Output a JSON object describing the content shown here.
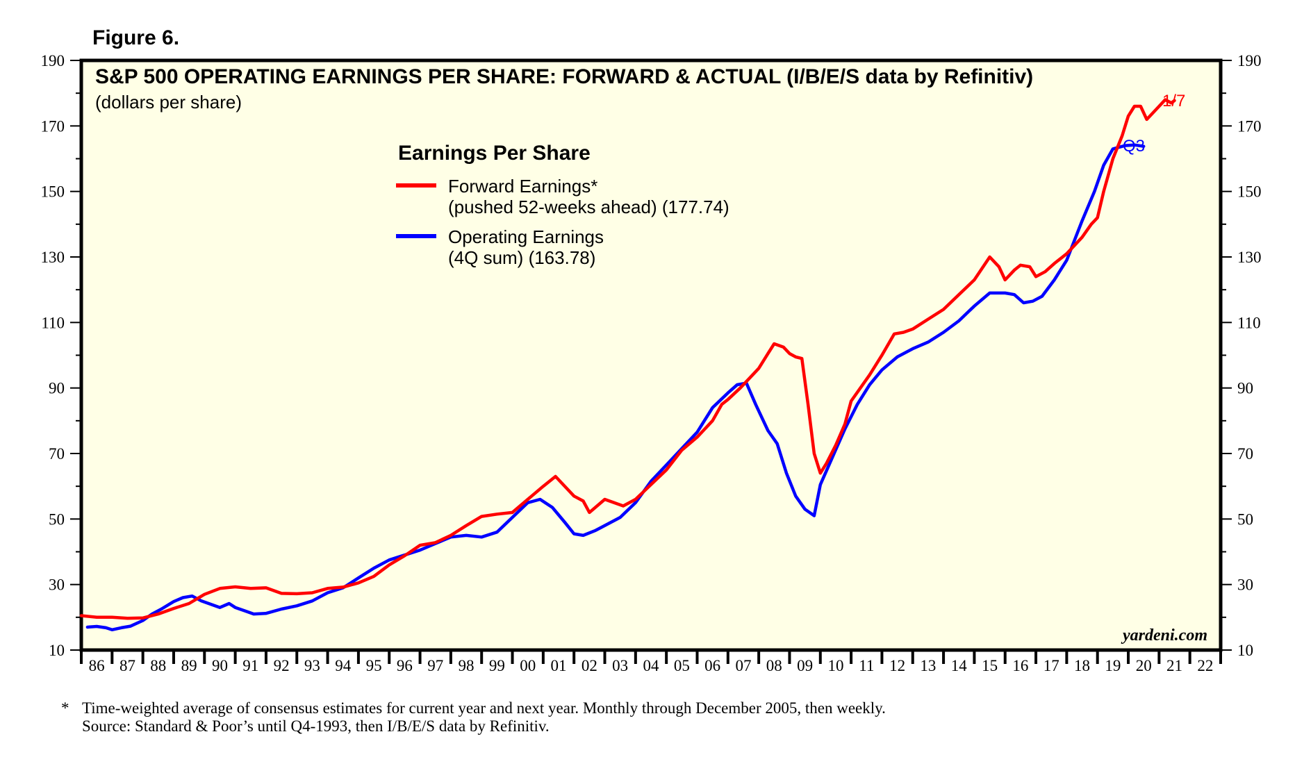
{
  "figure_label": "Figure 6.",
  "footnote": {
    "star": "*",
    "line1": "Time-weighted average of consensus estimates for current year and next year. Monthly through December 2005, then weekly.",
    "line2": "Source: Standard & Poor’s until Q4-1993, then I/B/E/S data by Refinitiv."
  },
  "colors": {
    "background": "#ffffe6",
    "forward": "#ff0000",
    "operating": "#0000ff",
    "axis": "#000000"
  },
  "chart_data": {
    "type": "line",
    "title": "S&P 500 OPERATING EARNINGS PER SHARE: FORWARD & ACTUAL (I/B/E/S data by Refinitiv)",
    "subtitle": "(dollars per share)",
    "ylabel": "dollars per share",
    "ylim": [
      10,
      190
    ],
    "yticks": [
      10,
      30,
      50,
      70,
      90,
      110,
      130,
      150,
      170,
      190
    ],
    "xlim": [
      1986,
      2023
    ],
    "x_tick_labels": [
      "86",
      "87",
      "88",
      "89",
      "90",
      "91",
      "92",
      "93",
      "94",
      "95",
      "96",
      "97",
      "98",
      "99",
      "00",
      "01",
      "02",
      "03",
      "04",
      "05",
      "06",
      "07",
      "08",
      "09",
      "10",
      "11",
      "12",
      "13",
      "14",
      "15",
      "16",
      "17",
      "18",
      "19",
      "20",
      "21",
      "22"
    ],
    "legend_title": "Earnings Per Share",
    "watermark": "yardeni.com",
    "series": [
      {
        "name": "Forward Earnings*",
        "sublabel": "(pushed 52-weeks ahead) (177.74)",
        "end_label": "1/7",
        "points": [
          [
            1986.0,
            20.5
          ],
          [
            1986.5,
            20.0
          ],
          [
            1987.0,
            20.0
          ],
          [
            1987.5,
            19.7
          ],
          [
            1988.0,
            19.8
          ],
          [
            1988.5,
            21.0
          ],
          [
            1989.0,
            22.7
          ],
          [
            1989.5,
            24.2
          ],
          [
            1990.0,
            27.0
          ],
          [
            1990.5,
            28.8
          ],
          [
            1991.0,
            29.3
          ],
          [
            1991.5,
            28.8
          ],
          [
            1992.0,
            29.0
          ],
          [
            1992.5,
            27.3
          ],
          [
            1993.0,
            27.2
          ],
          [
            1993.5,
            27.5
          ],
          [
            1994.0,
            28.8
          ],
          [
            1994.5,
            29.2
          ],
          [
            1995.0,
            30.5
          ],
          [
            1995.5,
            32.5
          ],
          [
            1996.0,
            36.0
          ],
          [
            1996.5,
            38.8
          ],
          [
            1997.0,
            42.0
          ],
          [
            1997.5,
            42.8
          ],
          [
            1998.0,
            45.0
          ],
          [
            1998.5,
            48.0
          ],
          [
            1999.0,
            50.8
          ],
          [
            1999.5,
            51.5
          ],
          [
            2000.0,
            52.0
          ],
          [
            2000.5,
            56.0
          ],
          [
            2001.0,
            60.0
          ],
          [
            2001.4,
            63.0
          ],
          [
            2001.6,
            61.0
          ],
          [
            2002.0,
            57.0
          ],
          [
            2002.3,
            55.5
          ],
          [
            2002.5,
            52.0
          ],
          [
            2003.0,
            56.0
          ],
          [
            2003.3,
            55.0
          ],
          [
            2003.6,
            54.0
          ],
          [
            2004.0,
            56.0
          ],
          [
            2004.5,
            60.5
          ],
          [
            2005.0,
            65.0
          ],
          [
            2005.5,
            71.0
          ],
          [
            2006.0,
            75.0
          ],
          [
            2006.5,
            80.0
          ],
          [
            2006.8,
            85.0
          ],
          [
            2007.0,
            86.5
          ],
          [
            2007.4,
            90.0
          ],
          [
            2007.8,
            94.0
          ],
          [
            2008.0,
            96.0
          ],
          [
            2008.3,
            100.5
          ],
          [
            2008.5,
            103.5
          ],
          [
            2008.8,
            102.5
          ],
          [
            2009.0,
            100.5
          ],
          [
            2009.2,
            99.5
          ],
          [
            2009.4,
            99.0
          ],
          [
            2009.6,
            85.0
          ],
          [
            2009.8,
            70.0
          ],
          [
            2010.0,
            64.0
          ],
          [
            2010.2,
            67.0
          ],
          [
            2010.5,
            72.5
          ],
          [
            2010.8,
            79.0
          ],
          [
            2011.0,
            86.0
          ],
          [
            2011.3,
            90.0
          ],
          [
            2011.6,
            94.0
          ],
          [
            2012.0,
            100.0
          ],
          [
            2012.4,
            106.5
          ],
          [
            2012.7,
            107.0
          ],
          [
            2013.0,
            108.0
          ],
          [
            2013.5,
            111.0
          ],
          [
            2014.0,
            114.0
          ],
          [
            2014.5,
            118.5
          ],
          [
            2015.0,
            123.0
          ],
          [
            2015.5,
            130.0
          ],
          [
            2015.8,
            127.0
          ],
          [
            2016.0,
            123.0
          ],
          [
            2016.3,
            126.0
          ],
          [
            2016.5,
            127.5
          ],
          [
            2016.8,
            127.0
          ],
          [
            2017.0,
            124.0
          ],
          [
            2017.3,
            125.5
          ],
          [
            2017.6,
            128.0
          ],
          [
            2018.0,
            131.0
          ],
          [
            2018.5,
            136.0
          ],
          [
            2018.8,
            140.0
          ],
          [
            2019.0,
            142.0
          ],
          [
            2019.2,
            150.0
          ],
          [
            2019.5,
            160.0
          ],
          [
            2019.8,
            167.0
          ],
          [
            2020.0,
            173.0
          ],
          [
            2020.2,
            176.0
          ],
          [
            2020.4,
            176.0
          ],
          [
            2020.6,
            172.0
          ],
          [
            2020.8,
            174.0
          ],
          [
            2021.0,
            176.0
          ],
          [
            2021.2,
            178.0
          ],
          [
            2021.4,
            177.0
          ],
          [
            2021.5,
            177.74
          ]
        ]
      },
      {
        "name": "Operating Earnings",
        "sublabel": "(4Q sum) (163.78)",
        "end_label": "Q3",
        "points": [
          [
            1986.2,
            17.0
          ],
          [
            1986.5,
            17.2
          ],
          [
            1986.8,
            16.8
          ],
          [
            1987.0,
            16.2
          ],
          [
            1987.3,
            16.8
          ],
          [
            1987.6,
            17.3
          ],
          [
            1988.0,
            19.0
          ],
          [
            1988.3,
            21.0
          ],
          [
            1988.6,
            22.5
          ],
          [
            1989.0,
            24.8
          ],
          [
            1989.3,
            26.0
          ],
          [
            1989.6,
            26.5
          ],
          [
            1989.9,
            25.0
          ],
          [
            1990.2,
            24.0
          ],
          [
            1990.5,
            23.0
          ],
          [
            1990.8,
            24.2
          ],
          [
            1991.0,
            23.0
          ],
          [
            1991.3,
            22.0
          ],
          [
            1991.6,
            21.0
          ],
          [
            1992.0,
            21.2
          ],
          [
            1992.5,
            22.5
          ],
          [
            1993.0,
            23.5
          ],
          [
            1993.5,
            25.0
          ],
          [
            1994.0,
            27.5
          ],
          [
            1994.5,
            29.0
          ],
          [
            1995.0,
            32.0
          ],
          [
            1995.5,
            35.0
          ],
          [
            1996.0,
            37.5
          ],
          [
            1996.5,
            39.0
          ],
          [
            1997.0,
            40.5
          ],
          [
            1997.5,
            42.5
          ],
          [
            1998.0,
            44.5
          ],
          [
            1998.5,
            45.0
          ],
          [
            1999.0,
            44.5
          ],
          [
            1999.5,
            46.0
          ],
          [
            2000.0,
            50.5
          ],
          [
            2000.5,
            55.0
          ],
          [
            2000.9,
            56.0
          ],
          [
            2001.3,
            53.5
          ],
          [
            2001.7,
            49.0
          ],
          [
            2002.0,
            45.5
          ],
          [
            2002.3,
            45.0
          ],
          [
            2002.7,
            46.5
          ],
          [
            2003.0,
            48.0
          ],
          [
            2003.5,
            50.5
          ],
          [
            2004.0,
            55.0
          ],
          [
            2004.5,
            61.5
          ],
          [
            2005.0,
            66.5
          ],
          [
            2005.5,
            71.5
          ],
          [
            2006.0,
            76.5
          ],
          [
            2006.5,
            84.0
          ],
          [
            2007.0,
            88.5
          ],
          [
            2007.3,
            91.0
          ],
          [
            2007.6,
            91.5
          ],
          [
            2007.9,
            85.0
          ],
          [
            2008.3,
            77.0
          ],
          [
            2008.6,
            73.0
          ],
          [
            2008.9,
            64.0
          ],
          [
            2009.2,
            57.0
          ],
          [
            2009.5,
            53.0
          ],
          [
            2009.8,
            51.0
          ],
          [
            2010.0,
            60.5
          ],
          [
            2010.4,
            69.0
          ],
          [
            2010.8,
            77.5
          ],
          [
            2011.2,
            85.0
          ],
          [
            2011.6,
            91.0
          ],
          [
            2012.0,
            95.5
          ],
          [
            2012.5,
            99.5
          ],
          [
            2013.0,
            102.0
          ],
          [
            2013.5,
            104.0
          ],
          [
            2014.0,
            107.0
          ],
          [
            2014.5,
            110.5
          ],
          [
            2015.0,
            115.0
          ],
          [
            2015.5,
            119.0
          ],
          [
            2016.0,
            119.0
          ],
          [
            2016.3,
            118.5
          ],
          [
            2016.6,
            116.0
          ],
          [
            2016.9,
            116.5
          ],
          [
            2017.2,
            118.0
          ],
          [
            2017.6,
            123.0
          ],
          [
            2018.0,
            129.0
          ],
          [
            2018.5,
            141.0
          ],
          [
            2018.9,
            150.0
          ],
          [
            2019.2,
            158.0
          ],
          [
            2019.5,
            163.0
          ],
          [
            2019.9,
            164.0
          ],
          [
            2020.2,
            164.2
          ],
          [
            2020.5,
            163.78
          ]
        ]
      }
    ]
  }
}
